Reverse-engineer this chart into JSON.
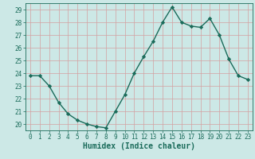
{
  "title": "",
  "xlabel": "Humidex (Indice chaleur)",
  "ylabel": "",
  "x": [
    0,
    1,
    2,
    3,
    4,
    5,
    6,
    7,
    8,
    9,
    10,
    11,
    12,
    13,
    14,
    15,
    16,
    17,
    18,
    19,
    20,
    21,
    22,
    23
  ],
  "y": [
    23.8,
    23.8,
    23.0,
    21.7,
    20.8,
    20.3,
    20.0,
    19.8,
    19.7,
    21.0,
    22.3,
    24.0,
    25.3,
    26.5,
    28.0,
    29.2,
    28.0,
    27.7,
    27.6,
    28.3,
    27.0,
    25.1,
    23.8,
    23.5
  ],
  "line_color": "#1a6b5a",
  "bg_color": "#cce8e6",
  "grid_color": "#d4a0a0",
  "tick_color": "#1a6b5a",
  "label_color": "#1a6b5a",
  "xlim": [
    -0.5,
    23.5
  ],
  "ylim": [
    19.5,
    29.5
  ],
  "yticks": [
    20,
    21,
    22,
    23,
    24,
    25,
    26,
    27,
    28,
    29
  ],
  "xticks": [
    0,
    1,
    2,
    3,
    4,
    5,
    6,
    7,
    8,
    9,
    10,
    11,
    12,
    13,
    14,
    15,
    16,
    17,
    18,
    19,
    20,
    21,
    22,
    23
  ],
  "marker": "D",
  "marker_size": 2.2,
  "line_width": 1.0,
  "tick_fontsize": 5.5,
  "xlabel_fontsize": 7.0
}
